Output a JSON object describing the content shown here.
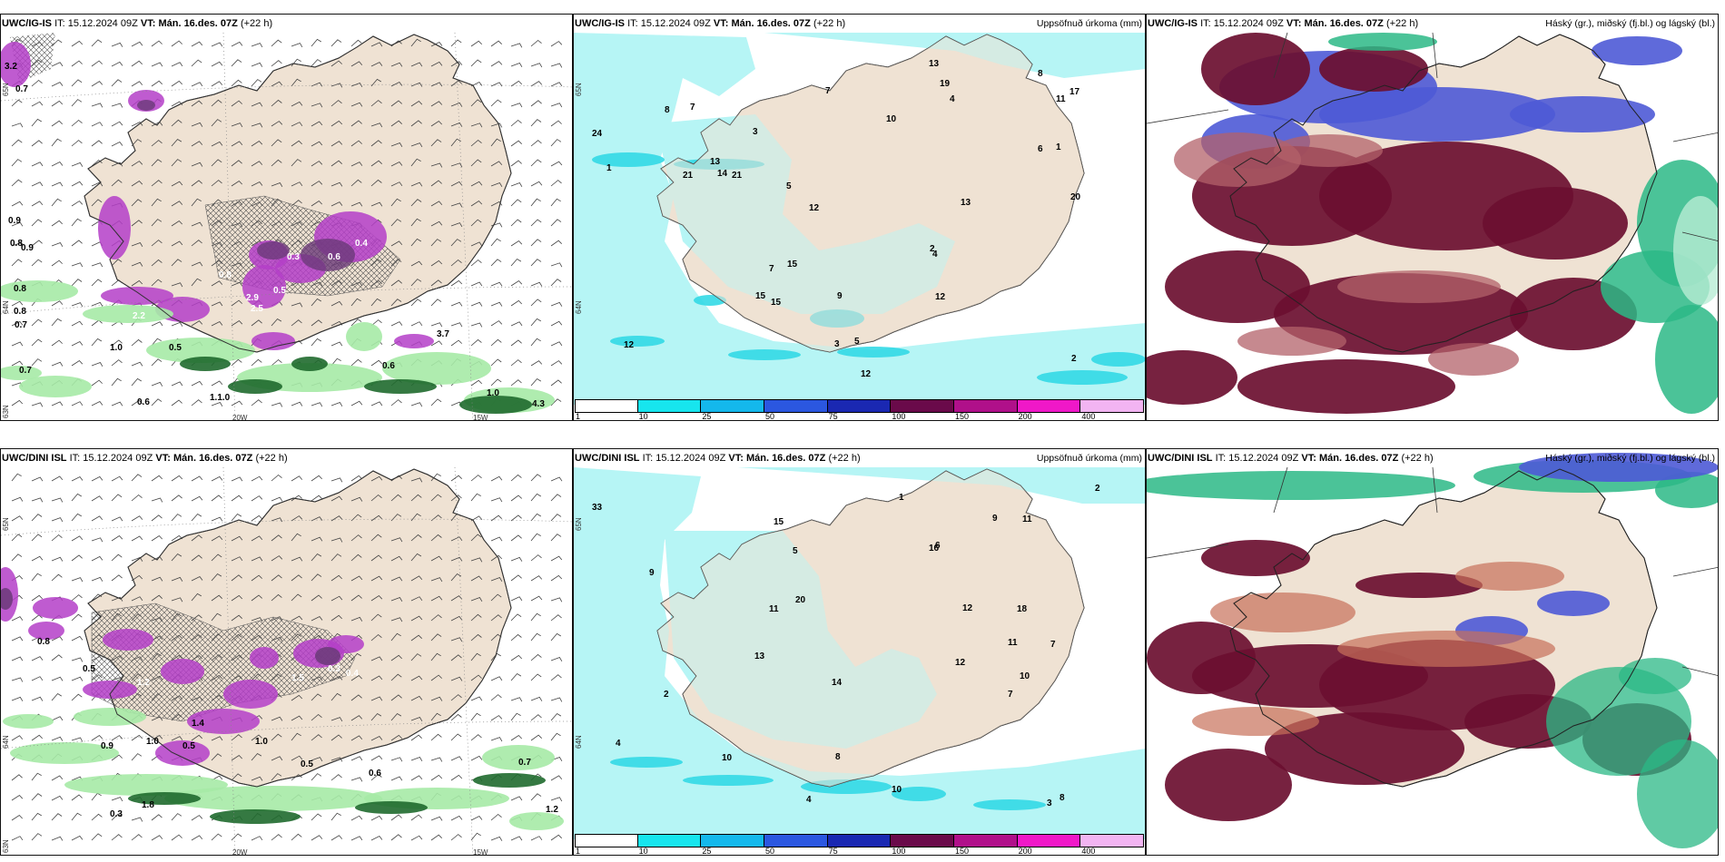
{
  "rows": [
    {
      "model": "UWC/IG-IS",
      "it_label": "IT:",
      "it_time": "15.12.2024 09Z",
      "vt_label": "VT:",
      "vt_time": "Mán. 16.des. 07Z",
      "lead": "(+22 h)"
    },
    {
      "model": "UWC/DINI ISL",
      "it_label": "IT:",
      "it_time": "15.12.2024 09Z",
      "vt_label": "VT:",
      "vt_time": "Mán. 16.des. 07Z",
      "lead": "(+22 h)"
    }
  ],
  "field_titles": {
    "precip": "Uppsöfnuð úrkoma (mm)",
    "clouds": "Háský (gr.), miðský (fj.bl.) og lágský (bl.)"
  },
  "colorbar": {
    "ticks": [
      "1",
      "10",
      "25",
      "50",
      "75",
      "100",
      "150",
      "200",
      "400"
    ],
    "colors": [
      "#ffffff",
      "#17e5ee",
      "#14b8ec",
      "#2b57e0",
      "#1a28b2",
      "#6a0a4a",
      "#b0108a",
      "#f018c8",
      "#f2b4f2"
    ]
  },
  "colors": {
    "land": "#efe2d3",
    "coast": "#333333",
    "rain_light": "#a6eaa6",
    "rain_heavy": "#1f6a2e",
    "snow": "#b43ec8",
    "snow_dark": "#6a3a78",
    "precip_fill": "#b6f5f5",
    "precip_mid": "#33d9e6",
    "cloud_high": "#6b0f30",
    "cloud_mid": "#4e5ad6",
    "cloud_low": "#2bb886"
  },
  "grid_labels": {
    "lat_top": "65N",
    "lat_mid": "64N",
    "lat_bottom": "63N",
    "lon_20w": "20W",
    "lon_15w": "15W"
  },
  "values": {
    "top_left_labels": [
      "3.2",
      "0.7",
      "0.9",
      "0.8",
      "0.9",
      "0.8",
      "0.8",
      "0.7",
      "0.7",
      "1.0",
      "0.6",
      "0.5",
      "1.1.0",
      "0.6",
      "1.0",
      "4.3",
      "3.7",
      "2.2",
      "2.5",
      "2.9",
      "0.8",
      "0.5",
      "0.3",
      "0.6",
      "0.4"
    ],
    "top_mid_labels": [
      "24",
      "13",
      "15",
      "11",
      "21",
      "15",
      "14",
      "8",
      "6",
      "7",
      "13",
      "10",
      "8",
      "4",
      "13",
      "12",
      "5",
      "7",
      "3",
      "2",
      "1",
      "17",
      "12",
      "21",
      "20",
      "19",
      "12",
      "15",
      "3",
      "5",
      "7",
      "12",
      "9",
      "4",
      "2",
      "1"
    ],
    "bottom_left_labels": [
      "0.8",
      "0.5",
      "0.8",
      "1.0",
      "1.2",
      "1.5",
      "0.3",
      "0.4",
      "0.9",
      "1.0",
      "1.4",
      "0.5",
      "1.0",
      "0.5",
      "0.6",
      "0.7",
      "1.2",
      "0.3",
      "1.8"
    ],
    "bottom_mid_labels": [
      "33",
      "2",
      "9",
      "10",
      "7",
      "8",
      "11",
      "12",
      "13",
      "14",
      "18",
      "16",
      "20",
      "15",
      "12",
      "10",
      "9",
      "7",
      "6",
      "5",
      "4",
      "3",
      "2",
      "1",
      "11",
      "8",
      "4",
      "11",
      "10"
    ]
  }
}
